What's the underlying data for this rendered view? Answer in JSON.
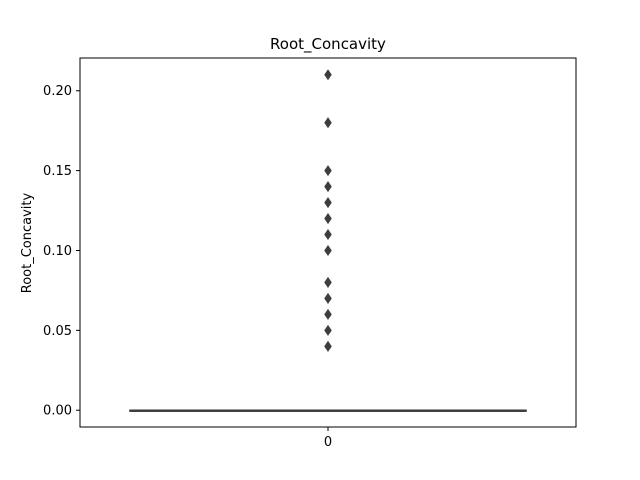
{
  "chart_data": {
    "type": "box",
    "title": "Root_Concavity",
    "xlabel": "",
    "ylabel": "Root_Concavity",
    "categories": [
      "0"
    ],
    "ylim": [
      -0.0105,
      0.2205
    ],
    "yticks": [
      0.0,
      0.05,
      0.1,
      0.15,
      0.2
    ],
    "ytick_labels": [
      "0.00",
      "0.05",
      "0.10",
      "0.15",
      "0.20"
    ],
    "box": {
      "category": "0",
      "min": 0.0,
      "q1": 0.0,
      "median": 0.0,
      "q3": 0.0,
      "max": 0.0
    },
    "outliers": [
      0.04,
      0.05,
      0.06,
      0.07,
      0.08,
      0.1,
      0.11,
      0.12,
      0.13,
      0.14,
      0.15,
      0.18,
      0.21
    ],
    "grid": false,
    "colors": {
      "box": "#3d3d3d",
      "outlier": "#3d3d3d",
      "axis": "#000000"
    }
  }
}
